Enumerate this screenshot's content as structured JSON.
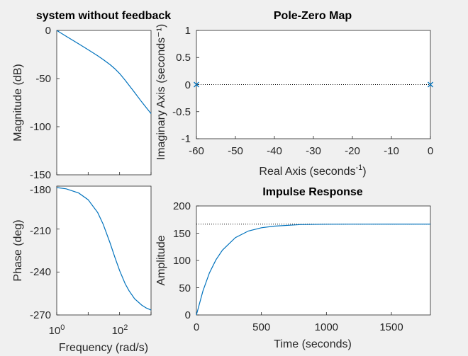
{
  "chart_data": [
    {
      "id": "mag",
      "type": "line",
      "title": "system without feedback",
      "ylabel": "Magnitude (dB)",
      "xlabel": "",
      "xscale": "log",
      "xlim": [
        1,
        1000
      ],
      "ylim": [
        -150,
        0
      ],
      "yticks": [
        "0",
        "-50",
        "-100",
        "-150"
      ],
      "x": [
        1,
        2,
        5,
        10,
        20,
        30,
        50,
        70,
        100,
        150,
        200,
        300,
        500,
        700,
        1000
      ],
      "values": [
        0,
        -6.0,
        -14.0,
        -20.0,
        -26.3,
        -30.2,
        -35.6,
        -39.7,
        -44.8,
        -51.8,
        -57.0,
        -64.4,
        -74.1,
        -80.1,
        -86.4
      ]
    },
    {
      "id": "phase",
      "type": "line",
      "title": "",
      "ylabel": "Phase (deg)",
      "xlabel": "Frequency  (rad/s)",
      "xscale": "log",
      "xlim": [
        1,
        1000
      ],
      "ylim": [
        -270,
        -180
      ],
      "yticks": [
        "-180",
        "-210",
        "-240",
        "-270"
      ],
      "xticks": [
        {
          "base": "10",
          "exp": "0"
        },
        {
          "base": "10",
          "exp": "2"
        }
      ],
      "x": [
        1,
        2,
        5,
        10,
        20,
        30,
        50,
        70,
        100,
        150,
        200,
        300,
        500,
        700,
        1000
      ],
      "values": [
        -181,
        -181.9,
        -184.8,
        -189.5,
        -198.4,
        -206.6,
        -219.8,
        -229.4,
        -239.0,
        -248.2,
        -253.1,
        -258.7,
        -263.1,
        -265.1,
        -266.6
      ]
    },
    {
      "id": "pz",
      "type": "scatter",
      "title": "Pole-Zero Map",
      "ylabel": "Imaginary Axis (seconds⁻¹)",
      "xlabel": "Real Axis (seconds",
      "xlabel_sup": "-1",
      "xlabel_end": ")",
      "xlim": [
        -60,
        0
      ],
      "ylim": [
        -1,
        1
      ],
      "xticks": [
        "-60",
        "-50",
        "-40",
        "-30",
        "-20",
        "-10",
        "0"
      ],
      "yticks": [
        "1",
        "0.5",
        "0",
        "-0.5",
        "-1"
      ],
      "points": [
        {
          "x": -60,
          "y": 0,
          "marker": "x"
        },
        {
          "x": 0,
          "y": 0,
          "marker": "x"
        }
      ]
    },
    {
      "id": "imp",
      "type": "line",
      "title": "Impulse Response",
      "ylabel": "Amplitude",
      "xlabel": "Time (seconds)",
      "xlim": [
        0,
        1800
      ],
      "ylim": [
        0,
        200
      ],
      "xticks": [
        "0",
        "500",
        "1000",
        "1500"
      ],
      "yticks": [
        "200",
        "150",
        "100",
        "50",
        "0"
      ],
      "steady_state": 166.7,
      "x": [
        0,
        50,
        100,
        150,
        200,
        300,
        400,
        500,
        600,
        800,
        1000,
        1200,
        1500,
        1800
      ],
      "values": [
        0,
        44,
        77,
        101,
        119,
        142,
        154,
        160,
        163,
        165.8,
        166.5,
        166.6,
        166.7,
        166.7
      ]
    }
  ]
}
